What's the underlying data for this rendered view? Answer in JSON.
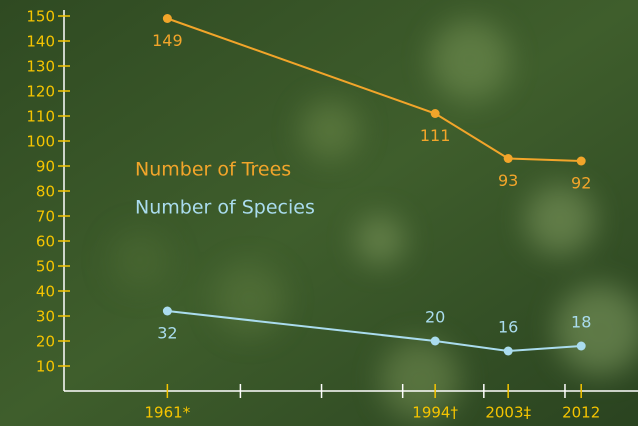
{
  "chart_data": {
    "type": "line",
    "x": [
      1961,
      1994,
      2003,
      2012
    ],
    "series": [
      {
        "name": "Number of Trees",
        "color": "#f2a52a",
        "values": [
          149,
          111,
          93,
          92
        ]
      },
      {
        "name": "Number of Species",
        "color": "#aadcee",
        "values": [
          32,
          20,
          16,
          18
        ]
      }
    ],
    "xlim": [
      1949,
      2019
    ],
    "xticks": [
      {
        "value": 1961,
        "label": "1961*"
      },
      {
        "value": 1994,
        "label": "1994†"
      },
      {
        "value": 2003,
        "label": "2003‡"
      },
      2012
    ],
    "minor_xticks": [
      1970,
      1980,
      1990,
      2000,
      2010
    ],
    "ylim": [
      0,
      150
    ],
    "yticks": [
      10,
      20,
      30,
      40,
      50,
      60,
      70,
      80,
      90,
      100,
      110,
      120,
      130,
      140,
      150
    ],
    "tick_color": "#f5c400",
    "axis_color": "#ffffff"
  }
}
